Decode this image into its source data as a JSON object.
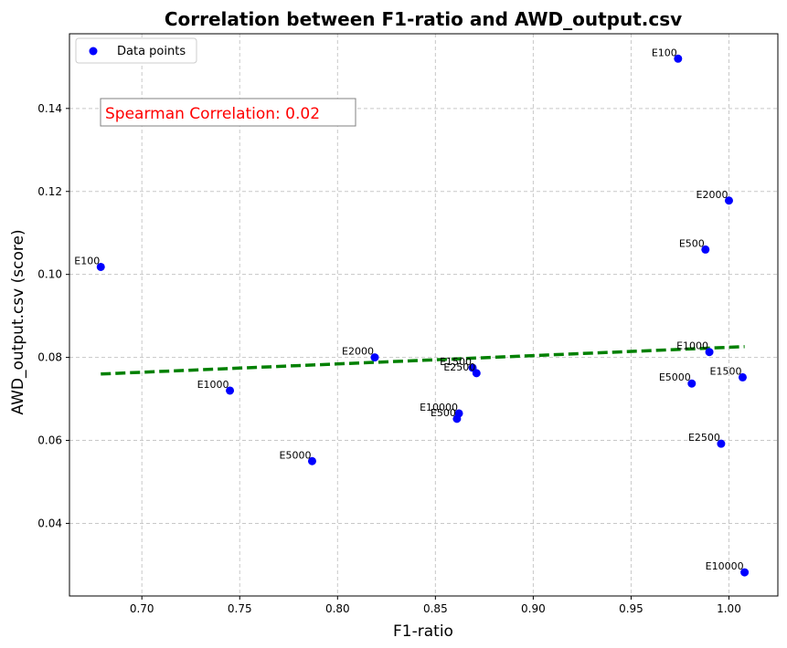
{
  "chart_data": {
    "type": "scatter",
    "title": "Correlation between F1-ratio and AWD_output.csv",
    "xlabel": "F1-ratio",
    "ylabel": "AWD_output.csv (score)",
    "xlim": [
      0.663,
      1.025
    ],
    "ylim": [
      0.0225,
      0.158
    ],
    "xticks": [
      "0.70",
      "0.75",
      "0.80",
      "0.85",
      "0.90",
      "0.95",
      "1.00"
    ],
    "xtick_values": [
      0.7,
      0.75,
      0.8,
      0.85,
      0.9,
      0.95,
      1.0
    ],
    "yticks": [
      "0.04",
      "0.06",
      "0.08",
      "0.10",
      "0.12",
      "0.14"
    ],
    "ytick_values": [
      0.04,
      0.06,
      0.08,
      0.1,
      0.12,
      0.14
    ],
    "grid": true,
    "legend": {
      "placement": "top-left",
      "entries": [
        "Data points"
      ]
    },
    "point_color": "#0000ff",
    "points": [
      {
        "x": 0.679,
        "y": 0.1018,
        "label": "E100"
      },
      {
        "x": 0.745,
        "y": 0.072,
        "label": "E1000"
      },
      {
        "x": 0.787,
        "y": 0.055,
        "label": "E5000"
      },
      {
        "x": 0.819,
        "y": 0.08,
        "label": "E2000"
      },
      {
        "x": 0.861,
        "y": 0.0652,
        "label": "E500"
      },
      {
        "x": 0.862,
        "y": 0.0665,
        "label": "E10000"
      },
      {
        "x": 0.869,
        "y": 0.0775,
        "label": "E1500"
      },
      {
        "x": 0.871,
        "y": 0.0762,
        "label": "E2500"
      },
      {
        "x": 0.974,
        "y": 0.152,
        "label": "E100"
      },
      {
        "x": 0.988,
        "y": 0.106,
        "label": "E500"
      },
      {
        "x": 0.99,
        "y": 0.0813,
        "label": "E1000"
      },
      {
        "x": 0.981,
        "y": 0.0737,
        "label": "E5000"
      },
      {
        "x": 1.0,
        "y": 0.1178,
        "label": "E2000"
      },
      {
        "x": 0.996,
        "y": 0.0592,
        "label": "E2500"
      },
      {
        "x": 1.007,
        "y": 0.0752,
        "label": "E1500"
      },
      {
        "x": 1.008,
        "y": 0.0282,
        "label": "E10000"
      }
    ],
    "trend_line": {
      "color": "#008000",
      "style": "dashed",
      "start": {
        "x": 0.679,
        "y": 0.076
      },
      "end": {
        "x": 1.008,
        "y": 0.0826
      }
    },
    "annotation": {
      "text": "Spearman Correlation: 0.02",
      "color": "#ff0000"
    }
  }
}
